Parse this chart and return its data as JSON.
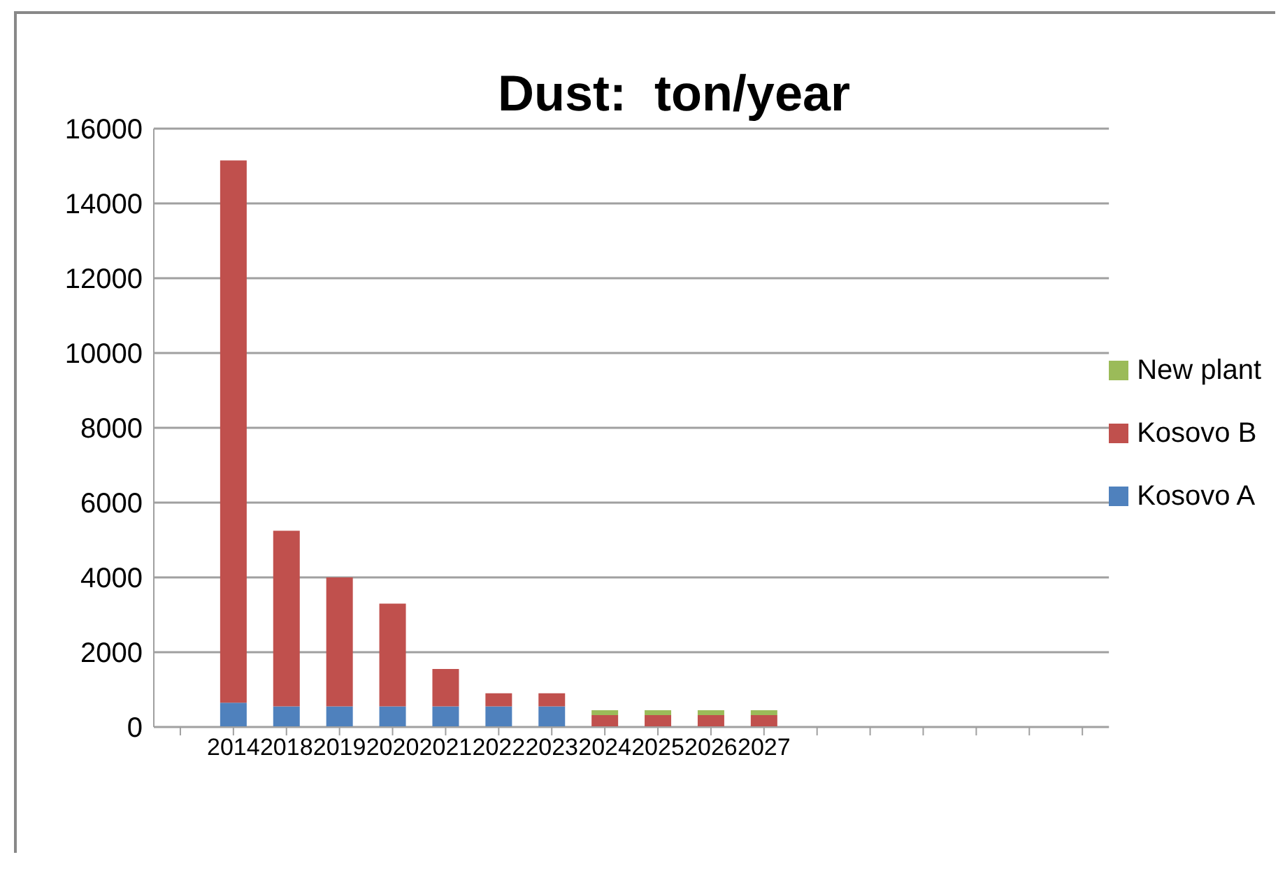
{
  "chart_data": {
    "type": "bar",
    "title": "Dust:  ton/year",
    "stacked": true,
    "categories": [
      null,
      "2014",
      "2018",
      "2019",
      "2020",
      "2021",
      "2022",
      "2023",
      "2024",
      "2025",
      "2026",
      "2027",
      null,
      null,
      null,
      null,
      null,
      null
    ],
    "series": [
      {
        "name": "Kosovo A",
        "color": "#4f81bd",
        "values": [
          null,
          650,
          550,
          550,
          550,
          550,
          550,
          550,
          0,
          0,
          0,
          0,
          null,
          null,
          null,
          null,
          null,
          null
        ]
      },
      {
        "name": "Kosovo B",
        "color": "#c0504d",
        "values": [
          null,
          14500,
          4700,
          3450,
          2750,
          1000,
          350,
          350,
          320,
          320,
          320,
          320,
          null,
          null,
          null,
          null,
          null,
          null
        ]
      },
      {
        "name": "New plant",
        "color": "#9bbb59",
        "values": [
          null,
          0,
          0,
          0,
          0,
          0,
          0,
          0,
          130,
          130,
          130,
          130,
          null,
          null,
          null,
          null,
          null,
          null
        ]
      }
    ],
    "ylim": [
      0,
      16000
    ],
    "yticks": [
      0,
      2000,
      4000,
      6000,
      8000,
      10000,
      12000,
      14000,
      16000
    ],
    "grid": "y",
    "legend": "right"
  }
}
